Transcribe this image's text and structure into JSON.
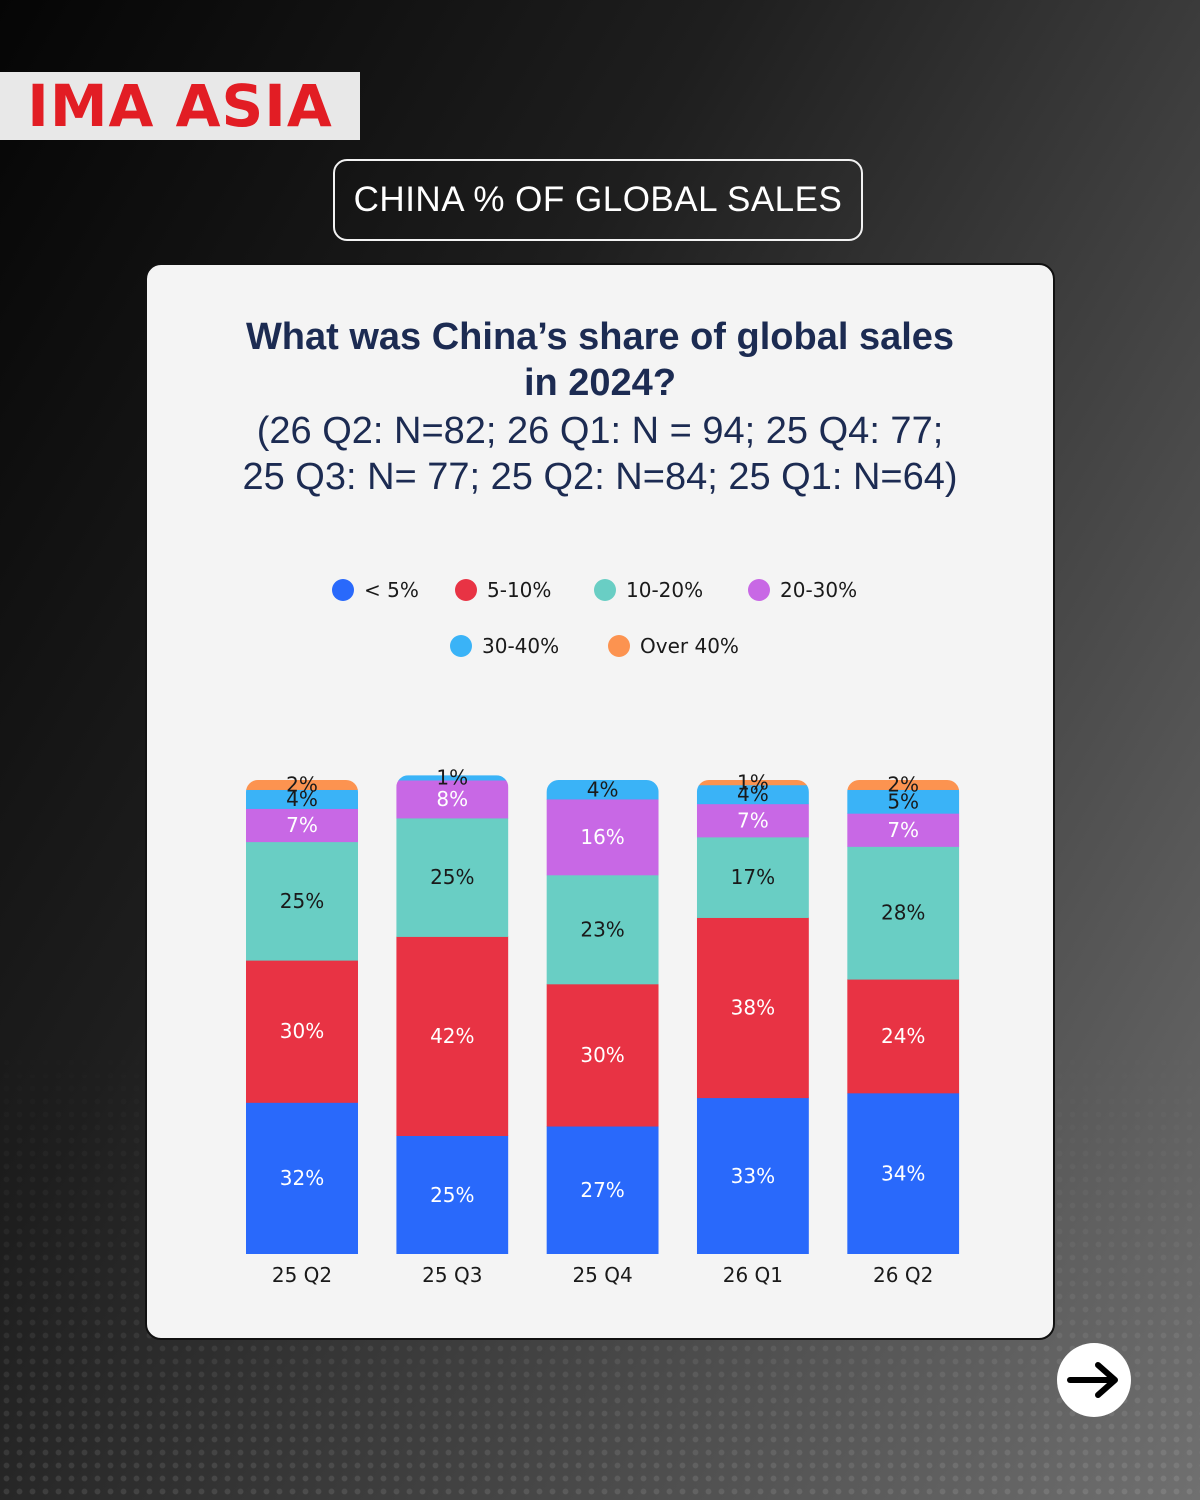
{
  "brand": {
    "logo_text": "IMA ASIA"
  },
  "header": {
    "label": "CHINA % OF GLOBAL SALES"
  },
  "question": {
    "title_line1": "What was China’s share of global sales",
    "title_line2": "in 2024?",
    "sub_line1": "(26 Q2: N=82; 26 Q1: N = 94; 25 Q4: 77;",
    "sub_line2": "25 Q3: N= 77; 25 Q2: N=84; 25 Q1: N=64)"
  },
  "nav": {
    "next_icon": "arrow-right-icon"
  },
  "colors": {
    "accent": "#e21d24",
    "title": "#1c2b52"
  },
  "chart_data": {
    "type": "bar",
    "stacked": true,
    "unit": "%",
    "categories": [
      "25 Q2",
      "25 Q3",
      "25 Q4",
      "26 Q1",
      "26 Q2"
    ],
    "series": [
      {
        "name": "< 5%",
        "color": "#2969fb",
        "values": [
          32,
          25,
          27,
          33,
          34
        ]
      },
      {
        "name": "5-10%",
        "color": "#e83344",
        "values": [
          30,
          42,
          30,
          38,
          24
        ]
      },
      {
        "name": "10-20%",
        "color": "#69cec4",
        "values": [
          25,
          25,
          23,
          17,
          28
        ]
      },
      {
        "name": "20-30%",
        "color": "#c868e5",
        "values": [
          7,
          8,
          16,
          7,
          7
        ]
      },
      {
        "name": "30-40%",
        "color": "#3ab3f7",
        "values": [
          4,
          1,
          4,
          4,
          5
        ]
      },
      {
        "name": "Over 40%",
        "color": "#fc9350",
        "values": [
          2,
          0,
          0,
          1,
          2
        ]
      }
    ],
    "legend_position": "top",
    "grid": false
  }
}
